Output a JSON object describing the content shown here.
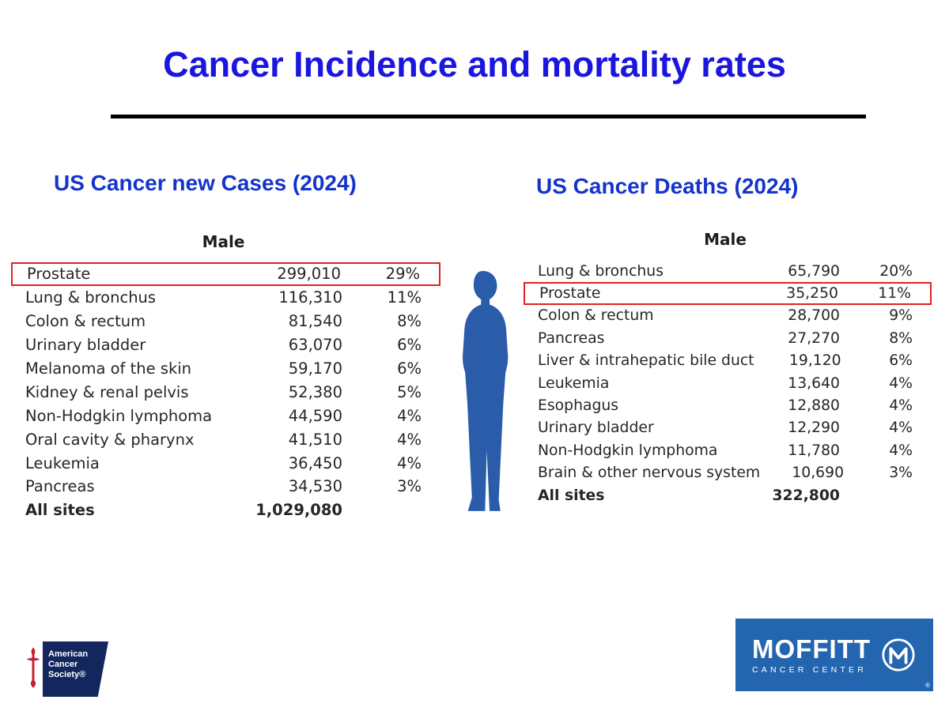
{
  "slide": {
    "title": "Cancer Incidence and mortality rates",
    "sections": {
      "cases": {
        "subtitle": "US Cancer new Cases (2024)",
        "column_header": "Male",
        "rows": [
          {
            "label": "Prostate",
            "value": "299,010",
            "pct": "29%",
            "highlighted": true
          },
          {
            "label": "Lung & bronchus",
            "value": "116,310",
            "pct": "11%"
          },
          {
            "label": "Colon & rectum",
            "value": "81,540",
            "pct": "8%"
          },
          {
            "label": "Urinary bladder",
            "value": "63,070",
            "pct": "6%"
          },
          {
            "label": "Melanoma of the skin",
            "value": "59,170",
            "pct": "6%"
          },
          {
            "label": "Kidney & renal pelvis",
            "value": "52,380",
            "pct": "5%"
          },
          {
            "label": "Non-Hodgkin lymphoma",
            "value": "44,590",
            "pct": "4%"
          },
          {
            "label": "Oral cavity & pharynx",
            "value": "41,510",
            "pct": "4%"
          },
          {
            "label": "Leukemia",
            "value": "36,450",
            "pct": "4%"
          },
          {
            "label": "Pancreas",
            "value": "34,530",
            "pct": "3%"
          },
          {
            "label": "All sites",
            "value": "1,029,080",
            "pct": "",
            "total": true
          }
        ]
      },
      "deaths": {
        "subtitle": "US Cancer Deaths (2024)",
        "column_header": "Male",
        "rows": [
          {
            "label": "Lung & bronchus",
            "value": "65,790",
            "pct": "20%"
          },
          {
            "label": "Prostate",
            "value": "35,250",
            "pct": "11%",
            "highlighted": true
          },
          {
            "label": "Colon & rectum",
            "value": "28,700",
            "pct": "9%"
          },
          {
            "label": "Pancreas",
            "value": "27,270",
            "pct": "8%"
          },
          {
            "label": "Liver & intrahepatic bile duct",
            "value": "19,120",
            "pct": "6%"
          },
          {
            "label": "Leukemia",
            "value": "13,640",
            "pct": "4%"
          },
          {
            "label": "Esophagus",
            "value": "12,880",
            "pct": "4%"
          },
          {
            "label": "Urinary bladder",
            "value": "12,290",
            "pct": "4%"
          },
          {
            "label": "Non-Hodgkin lymphoma",
            "value": "11,780",
            "pct": "4%"
          },
          {
            "label": "Brain & other nervous system",
            "value": "10,690",
            "pct": "3%"
          },
          {
            "label": "All sites",
            "value": "322,800",
            "pct": "",
            "total": true
          }
        ]
      }
    },
    "logos": {
      "acs": {
        "line1": "American",
        "line2": "Cancer",
        "line3": "Society®"
      },
      "moffitt": {
        "name": "MOFFITT",
        "tagline": "CANCER CENTER",
        "registered": "®"
      }
    },
    "colors": {
      "title_blue": "#1b16dd",
      "subtitle_blue": "#1433cd",
      "silhouette_blue": "#2a5caa",
      "highlight_red": "#e22222",
      "moffitt_blue": "#2365ae",
      "acs_navy": "#13265e",
      "acs_red": "#c52032"
    }
  }
}
